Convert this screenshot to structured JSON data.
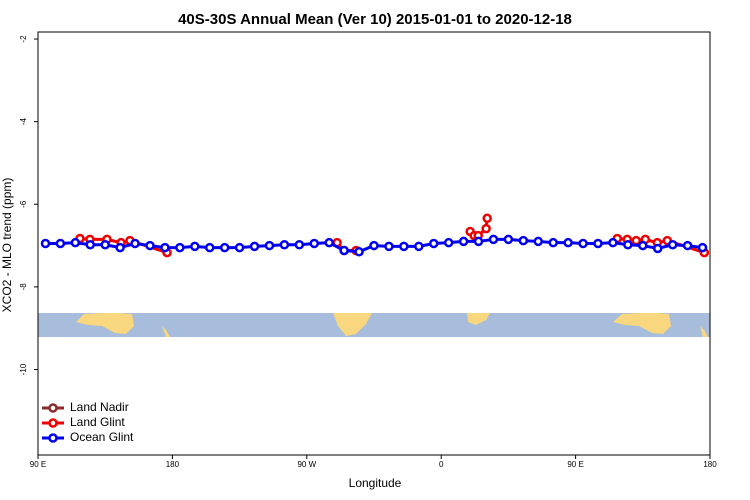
{
  "chart_data": {
    "type": "line",
    "title": "40S-30S Annual Mean (Ver 10)   2015-01-01 to 2020-12-18",
    "x_label": "Longitude",
    "y_label": "XCO2 - MLO trend (ppm)",
    "xlim": [
      90,
      540
    ],
    "xticks": [
      {
        "value": 90,
        "label": "90 E"
      },
      180,
      {
        "value": 270,
        "label": "90 W"
      },
      {
        "value": 360,
        "label": "0"
      },
      {
        "value": 450,
        "label": "90 E"
      },
      {
        "value": 540,
        "label": "180"
      }
    ],
    "ylim": [
      -12.07,
      -1.83
    ],
    "yticks": [
      -2,
      -4,
      -6,
      -8,
      -10
    ],
    "legend": "bottom-left",
    "series": [
      {
        "name": "Land Nadir",
        "color": "#8b2a2a",
        "x": [],
        "values": []
      },
      {
        "name": "Land Glint",
        "color": "#ee0000",
        "x": [
          118.1,
          124.8,
          136.2,
          145.6,
          151.6,
          176.4,
          null,
          290.3,
          295,
          303,
          null,
          379.4,
          382.1,
          384.8,
          390.1,
          390.8,
          null,
          477.9,
          484.6,
          490.6,
          496.7,
          504.7,
          511.4,
          536.2
        ],
        "values": [
          -6.83,
          -6.85,
          -6.85,
          -6.93,
          -6.88,
          -7.17,
          null,
          -6.93,
          -7.12,
          -7.12,
          null,
          -6.66,
          -6.76,
          -6.76,
          -6.59,
          -6.34,
          null,
          -6.83,
          -6.85,
          -6.88,
          -6.85,
          -6.93,
          -6.88,
          -7.17
        ]
      },
      {
        "name": "Ocean Glint",
        "color": "#0000ee",
        "x": [
          95,
          105,
          115,
          125,
          135,
          145,
          155,
          165,
          175,
          185,
          195,
          205,
          215,
          225,
          235,
          245,
          255,
          265,
          275,
          285,
          295,
          305,
          315,
          325,
          335,
          345,
          355,
          365,
          375,
          385,
          395,
          405,
          415,
          425,
          435,
          445,
          455,
          465,
          475,
          485,
          495,
          505,
          515,
          525,
          535
        ],
        "values": [
          -6.95,
          -6.95,
          -6.93,
          -6.98,
          -6.98,
          -7.05,
          -6.95,
          -7.0,
          -7.05,
          -7.05,
          -7.02,
          -7.05,
          -7.05,
          -7.05,
          -7.02,
          -7.0,
          -6.98,
          -6.98,
          -6.95,
          -6.93,
          -7.12,
          -7.15,
          -7.0,
          -7.02,
          -7.02,
          -7.02,
          -6.95,
          -6.93,
          -6.9,
          -6.9,
          -6.85,
          -6.85,
          -6.88,
          -6.9,
          -6.93,
          -6.93,
          -6.95,
          -6.95,
          -6.93,
          -6.98,
          -7.0,
          -7.07,
          -6.98,
          -7.0,
          -7.05
        ]
      }
    ]
  }
}
